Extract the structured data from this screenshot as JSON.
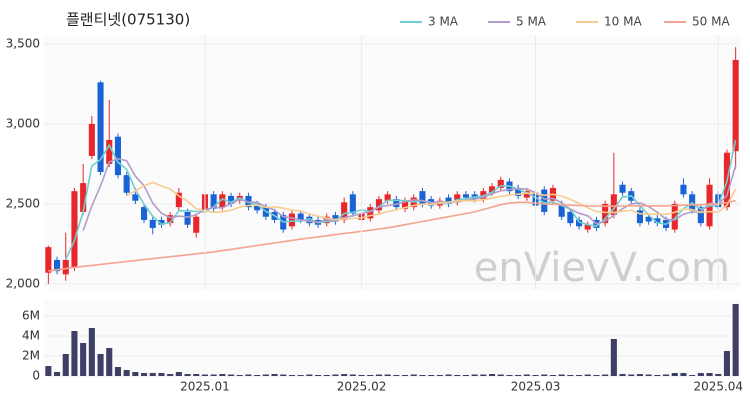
{
  "chart_data": [
    {
      "type": "candlestick",
      "title": "플랜티넷(075130)",
      "watermark": "enVievV.com",
      "up_color": "#e8262b",
      "down_color": "#1a63d6",
      "ylim": [
        1962,
        3556
      ],
      "yticks": [
        {
          "value": 2000,
          "label": "2,000"
        },
        {
          "value": 2500,
          "label": "2,500"
        },
        {
          "value": 3000,
          "label": "3,000"
        },
        {
          "value": 3500,
          "label": "3,500"
        }
      ],
      "grid": true,
      "legend": "top-right",
      "open": [
        2070,
        2150,
        2060,
        2100,
        2450,
        2800,
        3260,
        2750,
        2920,
        2680,
        2560,
        2480,
        2400,
        2400,
        2380,
        2480,
        2450,
        2320,
        2450,
        2560,
        2480,
        2550,
        2520,
        2550,
        2500,
        2480,
        2450,
        2430,
        2360,
        2440,
        2420,
        2400,
        2380,
        2430,
        2400,
        2560,
        2400,
        2410,
        2460,
        2520,
        2530,
        2470,
        2480,
        2580,
        2530,
        2490,
        2540,
        2510,
        2560,
        2560,
        2530,
        2570,
        2600,
        2640,
        2600,
        2540,
        2570,
        2590,
        2520,
        2500,
        2450,
        2400,
        2340,
        2400,
        2380,
        2430,
        2620,
        2580,
        2460,
        2420,
        2410,
        2400,
        2340,
        2620,
        2560,
        2480,
        2360,
        2560,
        2480,
        2830
      ],
      "high": [
        2240,
        2170,
        2320,
        2600,
        2750,
        3050,
        3270,
        3150,
        2940,
        2700,
        2600,
        2500,
        2420,
        2420,
        2450,
        2600,
        2470,
        2440,
        2580,
        2580,
        2580,
        2570,
        2570,
        2570,
        2520,
        2500,
        2470,
        2450,
        2460,
        2460,
        2440,
        2420,
        2440,
        2450,
        2540,
        2580,
        2460,
        2500,
        2550,
        2580,
        2550,
        2540,
        2560,
        2600,
        2550,
        2540,
        2560,
        2580,
        2580,
        2580,
        2600,
        2630,
        2670,
        2660,
        2620,
        2600,
        2590,
        2610,
        2620,
        2520,
        2470,
        2420,
        2390,
        2420,
        2520,
        2820,
        2640,
        2600,
        2480,
        2440,
        2430,
        2420,
        2520,
        2660,
        2580,
        2500,
        2660,
        2580,
        2840,
        3480
      ],
      "low": [
        2000,
        2060,
        2020,
        2080,
        2430,
        2780,
        2680,
        2730,
        2660,
        2550,
        2500,
        2380,
        2310,
        2350,
        2360,
        2460,
        2350,
        2290,
        2430,
        2450,
        2460,
        2480,
        2500,
        2460,
        2440,
        2400,
        2380,
        2320,
        2340,
        2380,
        2360,
        2350,
        2360,
        2370,
        2380,
        2420,
        2380,
        2390,
        2440,
        2500,
        2460,
        2450,
        2460,
        2480,
        2470,
        2470,
        2480,
        2490,
        2520,
        2510,
        2510,
        2550,
        2580,
        2560,
        2530,
        2520,
        2470,
        2430,
        2500,
        2400,
        2360,
        2340,
        2320,
        2330,
        2360,
        2410,
        2550,
        2500,
        2360,
        2370,
        2360,
        2330,
        2320,
        2540,
        2440,
        2360,
        2340,
        2460,
        2460,
        2720
      ],
      "close": [
        2230,
        2080,
        2150,
        2580,
        2630,
        3000,
        2700,
        2900,
        2680,
        2570,
        2520,
        2400,
        2350,
        2370,
        2430,
        2570,
        2370,
        2420,
        2560,
        2470,
        2560,
        2500,
        2550,
        2480,
        2460,
        2420,
        2400,
        2340,
        2440,
        2400,
        2380,
        2370,
        2420,
        2390,
        2510,
        2440,
        2440,
        2480,
        2530,
        2560,
        2480,
        2520,
        2540,
        2500,
        2490,
        2520,
        2500,
        2560,
        2540,
        2530,
        2580,
        2610,
        2650,
        2580,
        2550,
        2580,
        2490,
        2450,
        2600,
        2420,
        2380,
        2360,
        2370,
        2350,
        2500,
        2560,
        2570,
        2520,
        2380,
        2390,
        2380,
        2350,
        2500,
        2560,
        2460,
        2380,
        2620,
        2480,
        2820,
        3400
      ],
      "series": [
        {
          "name": "3 MA",
          "color": "#6fcfcf",
          "values": [
            null,
            null,
            2153,
            2270,
            2453,
            2737,
            2777,
            2867,
            2760,
            2717,
            2590,
            2497,
            2423,
            2373,
            2383,
            2457,
            2457,
            2453,
            2450,
            2483,
            2530,
            2510,
            2537,
            2510,
            2497,
            2453,
            2427,
            2387,
            2393,
            2393,
            2407,
            2383,
            2390,
            2393,
            2440,
            2447,
            2463,
            2453,
            2483,
            2523,
            2523,
            2520,
            2513,
            2520,
            2510,
            2503,
            2503,
            2527,
            2533,
            2543,
            2550,
            2573,
            2613,
            2613,
            2593,
            2570,
            2540,
            2507,
            2513,
            2490,
            2467,
            2387,
            2370,
            2360,
            2407,
            2470,
            2543,
            2550,
            2490,
            2430,
            2383,
            2373,
            2410,
            2470,
            2507,
            2467,
            2487,
            2493,
            2640,
            2900
          ]
        },
        {
          "name": "5 MA",
          "color": "#b29dc9",
          "values": [
            null,
            null,
            null,
            null,
            2334,
            2488,
            2612,
            2762,
            2782,
            2770,
            2674,
            2614,
            2504,
            2442,
            2414,
            2424,
            2418,
            2432,
            2464,
            2478,
            2476,
            2502,
            2528,
            2512,
            2510,
            2482,
            2462,
            2420,
            2412,
            2400,
            2392,
            2386,
            2402,
            2392,
            2414,
            2426,
            2440,
            2452,
            2480,
            2490,
            2498,
            2514,
            2526,
            2520,
            2506,
            2514,
            2510,
            2514,
            2522,
            2530,
            2542,
            2564,
            2582,
            2590,
            2594,
            2594,
            2570,
            2530,
            2534,
            2508,
            2468,
            2442,
            2426,
            2376,
            2392,
            2428,
            2470,
            2500,
            2506,
            2484,
            2448,
            2404,
            2400,
            2436,
            2450,
            2450,
            2504,
            2500,
            2552,
            2740
          ]
        },
        {
          "name": "10 MA",
          "color": "#f6cc90",
          "values": [
            null,
            null,
            null,
            null,
            null,
            null,
            null,
            null,
            null,
            2552,
            2581,
            2614,
            2634,
            2613,
            2593,
            2550,
            2517,
            2469,
            2457,
            2447,
            2451,
            2461,
            2480,
            2490,
            2493,
            2478,
            2482,
            2474,
            2462,
            2455,
            2437,
            2424,
            2411,
            2402,
            2407,
            2409,
            2413,
            2427,
            2436,
            2453,
            2463,
            2478,
            2490,
            2499,
            2497,
            2505,
            2511,
            2519,
            2520,
            2517,
            2527,
            2536,
            2547,
            2555,
            2561,
            2567,
            2565,
            2554,
            2560,
            2549,
            2529,
            2504,
            2476,
            2453,
            2448,
            2446,
            2454,
            2461,
            2439,
            2436,
            2436,
            2435,
            2448,
            2469,
            2465,
            2447,
            2452,
            2448,
            2492,
            2593
          ]
        },
        {
          "name": "50 MA",
          "color": "#f4a48e",
          "values": [
            2080,
            2088,
            2096,
            2104,
            2110,
            2116,
            2122,
            2128,
            2134,
            2140,
            2146,
            2152,
            2158,
            2164,
            2170,
            2176,
            2182,
            2188,
            2194,
            2200,
            2208,
            2216,
            2224,
            2232,
            2240,
            2248,
            2256,
            2264,
            2272,
            2280,
            2287,
            2294,
            2301,
            2308,
            2315,
            2322,
            2329,
            2336,
            2343,
            2350,
            2360,
            2370,
            2380,
            2390,
            2400,
            2410,
            2420,
            2430,
            2440,
            2450,
            2465,
            2480,
            2495,
            2505,
            2510,
            2510,
            2505,
            2500,
            2498,
            2495,
            2492,
            2490,
            2488,
            2487,
            2486,
            2486,
            2487,
            2488,
            2488,
            2488,
            2488,
            2488,
            2490,
            2492,
            2494,
            2495,
            2497,
            2500,
            2508,
            2520
          ]
        }
      ]
    },
    {
      "type": "bar",
      "color": "#3d3f66",
      "categories": [
        null,
        null,
        null,
        null,
        null,
        null,
        null,
        null,
        null,
        null,
        null,
        null,
        null,
        null,
        null,
        null,
        null,
        null,
        "2025.01",
        null,
        null,
        null,
        null,
        null,
        null,
        null,
        null,
        null,
        null,
        null,
        null,
        null,
        null,
        null,
        null,
        null,
        "2025.02",
        null,
        null,
        null,
        null,
        null,
        null,
        null,
        null,
        null,
        null,
        null,
        null,
        null,
        null,
        null,
        null,
        null,
        null,
        null,
        "2025.03",
        null,
        null,
        null,
        null,
        null,
        null,
        null,
        null,
        null,
        null,
        null,
        null,
        null,
        null,
        null,
        null,
        null,
        null,
        null,
        null,
        "2025.04",
        null,
        null
      ],
      "values": [
        1000000,
        400000,
        2200000,
        4500000,
        3300000,
        4800000,
        2200000,
        2800000,
        900000,
        600000,
        400000,
        300000,
        300000,
        300000,
        200000,
        400000,
        200000,
        200000,
        150000,
        150000,
        200000,
        150000,
        100000,
        150000,
        100000,
        150000,
        200000,
        150000,
        100000,
        100000,
        150000,
        100000,
        100000,
        150000,
        200000,
        150000,
        100000,
        100000,
        150000,
        150000,
        100000,
        100000,
        150000,
        100000,
        100000,
        100000,
        150000,
        100000,
        100000,
        150000,
        150000,
        200000,
        150000,
        100000,
        100000,
        150000,
        100000,
        150000,
        100000,
        150000,
        100000,
        100000,
        150000,
        100000,
        150000,
        3700000,
        200000,
        150000,
        200000,
        150000,
        100000,
        150000,
        300000,
        300000,
        100000,
        300000,
        300000,
        200000,
        2500000,
        7200000
      ],
      "ylim": [
        0,
        7600000
      ],
      "yticks": [
        0,
        {
          "value": 2000000,
          "label": "2M"
        },
        {
          "value": 4000000,
          "label": "4M"
        },
        {
          "value": 6000000,
          "label": "6M"
        }
      ],
      "grid": true
    }
  ]
}
